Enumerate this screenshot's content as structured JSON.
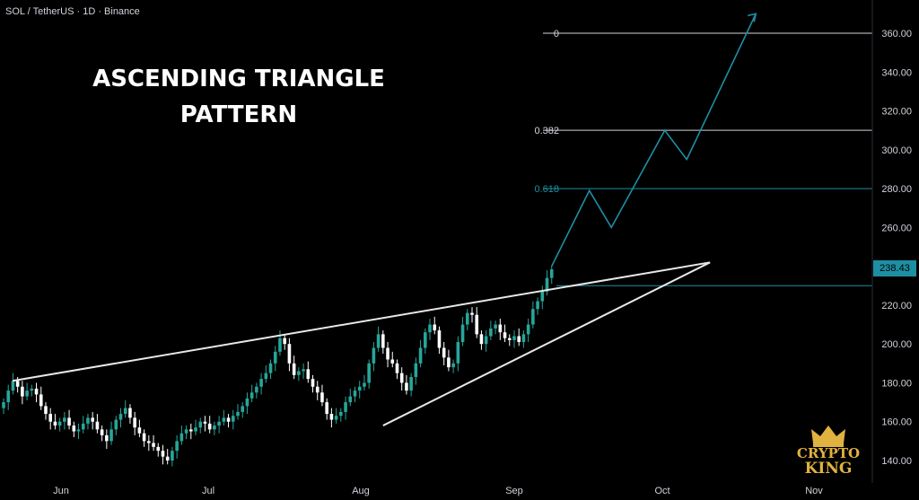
{
  "header": {
    "symbol": "SOL / TetherUS · 1D · Binance"
  },
  "headline": {
    "line1": "ASCENDING TRIANGLE",
    "line2": "PATTERN"
  },
  "logo": {
    "line1": "CRYPTO",
    "line2": "KING",
    "icon": "crown-icon"
  },
  "price_tag": "238.43",
  "colors": {
    "background": "#000000",
    "up": "#26a69a",
    "down": "#ffffff",
    "accent": "#1d8fa3",
    "logo": "#e0b240"
  },
  "chart_data": {
    "type": "candlestick",
    "title": "",
    "xlabel": "",
    "ylabel": "",
    "ylim": [
      132,
      372
    ],
    "x_ticks": [
      "Jun",
      "Jul",
      "Aug",
      "Sep",
      "Oct",
      "Nov"
    ],
    "y_ticks": [
      140,
      160,
      180,
      200,
      220,
      240,
      260,
      280,
      300,
      320,
      340,
      360
    ],
    "grid": false,
    "last_price": 238.43,
    "closes": [
      170,
      176,
      181,
      178,
      173,
      176,
      177,
      174,
      168,
      164,
      160,
      158,
      160,
      162,
      158,
      155,
      156,
      159,
      162,
      160,
      156,
      153,
      150,
      156,
      161,
      164,
      167,
      162,
      157,
      154,
      150,
      149,
      147,
      145,
      142,
      140,
      145,
      150,
      154,
      156,
      155,
      157,
      160,
      159,
      156,
      158,
      160,
      162,
      160,
      163,
      165,
      168,
      172,
      175,
      178,
      182,
      185,
      190,
      196,
      203,
      200,
      190,
      184,
      186,
      187,
      182,
      178,
      175,
      170,
      164,
      161,
      163,
      165,
      170,
      173,
      176,
      178,
      180,
      190,
      198,
      205,
      198,
      192,
      190,
      185,
      180,
      176,
      183,
      190,
      198,
      206,
      210,
      207,
      198,
      193,
      188,
      190,
      201,
      210,
      216,
      215,
      205,
      200,
      204,
      208,
      210,
      206,
      203,
      202,
      204,
      201,
      205,
      210,
      218,
      222,
      227,
      234,
      238.43
    ],
    "fib_levels": [
      {
        "label": "0",
        "value": 360
      },
      {
        "label": "0.382",
        "value": 310
      },
      {
        "label": "0.618",
        "value": 280
      }
    ],
    "breakout_level": 230,
    "projection": [
      [
        0,
        240
      ],
      [
        12,
        279
      ],
      [
        19,
        260
      ],
      [
        36,
        310
      ],
      [
        43,
        295
      ],
      [
        65,
        370
      ]
    ],
    "triangle": {
      "resistance": [
        [
          0,
          181
        ],
        [
          146,
          242
        ]
      ],
      "support": [
        [
          81,
          158
        ],
        [
          146,
          242
        ]
      ]
    }
  }
}
